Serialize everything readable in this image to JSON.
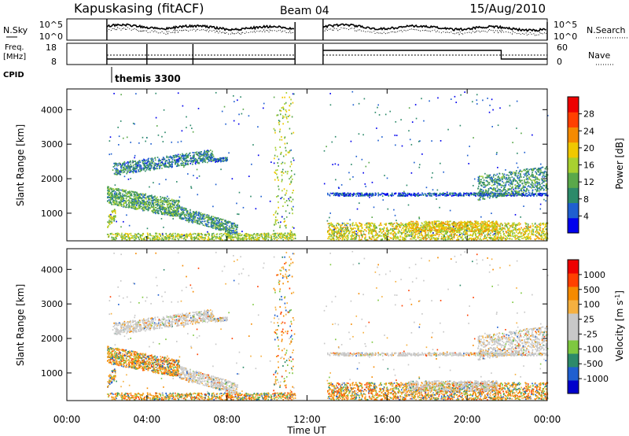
{
  "header": {
    "station": "Kapuskasing (fitACF)",
    "beam": "Beam 04",
    "date": "15/Aug/2010"
  },
  "noise_panel": {
    "left_label": "N.Sky",
    "right_label": "N.Search",
    "left_ticks": [
      "10^5",
      "10^0"
    ],
    "right_ticks": [
      "10^5",
      "10^0"
    ]
  },
  "freq_panel": {
    "left_label_line1": "Freq.",
    "left_label_line2": "[MHz]",
    "left_ticks": [
      "18",
      "8"
    ],
    "right_label": "Nave",
    "right_ticks": [
      "60",
      "0"
    ]
  },
  "cpid": {
    "label": "CPID",
    "program": "themis 3300"
  },
  "time_axis": {
    "label": "Time UT",
    "ticks": [
      "00:00",
      "04:00",
      "08:00",
      "12:00",
      "16:00",
      "20:00",
      "00:00"
    ]
  },
  "colors": {
    "power_scale": [
      "#0000ee",
      "#1f5fd0",
      "#2d8a6a",
      "#5aa84a",
      "#a8d030",
      "#f0c800",
      "#f58a00",
      "#ff4000",
      "#ee0000"
    ],
    "velocity_scale": [
      "#ee0000",
      "#ff4000",
      "#f58a00",
      "#f5b040",
      "#c8c8c8",
      "#c8c8c8",
      "#7ec840",
      "#2d8a6a",
      "#1f5fd0",
      "#0000cc"
    ],
    "ground_scatter": "#c8c8c8"
  },
  "chart_data": [
    {
      "type": "heatmap",
      "panel": "power",
      "ylabel": "Slant Range [km]",
      "xlabel": "",
      "xlim_hours": [
        0,
        24
      ],
      "ylim": [
        200,
        4600
      ],
      "yticks": [
        "1000",
        "2000",
        "3000",
        "4000"
      ],
      "colorbar": {
        "label": "Power [dB]",
        "range": [
          0,
          32
        ],
        "ticks": [
          "4",
          "8",
          "12",
          "16",
          "20",
          "24",
          "28"
        ]
      },
      "features": [
        {
          "t0": 2.3,
          "t1": 7.2,
          "r0": 2150,
          "r1": 2750,
          "level": 0.35,
          "desc": "band"
        },
        {
          "t0": 2.2,
          "t1": 5.5,
          "r0": 1150,
          "r1": 1750,
          "level": 0.5,
          "desc": "band"
        },
        {
          "t0": 13.0,
          "t1": 24.0,
          "r0": 1450,
          "r1": 1600,
          "level": 0.2,
          "desc": "band"
        },
        {
          "t0": 13.0,
          "t1": 24.0,
          "r0": 250,
          "r1": 800,
          "level": 0.6,
          "desc": "near-range"
        }
      ]
    },
    {
      "type": "heatmap",
      "panel": "velocity",
      "ylabel": "Slant Range [km]",
      "xlabel": "Time UT",
      "xlim_hours": [
        0,
        24
      ],
      "ylim": [
        200,
        4600
      ],
      "yticks": [
        "1000",
        "2000",
        "3000",
        "4000"
      ],
      "colorbar": {
        "label": "Velocity [m s^-1]",
        "ticks": [
          "1000",
          "500",
          "100",
          "25",
          "-25",
          "-100",
          "-500",
          "-1000"
        ]
      }
    }
  ]
}
